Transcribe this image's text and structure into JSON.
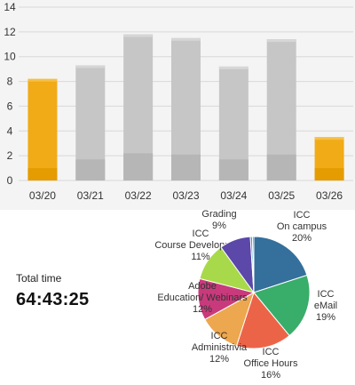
{
  "total_time": {
    "label": "Total time",
    "value": "64:43:25"
  },
  "colors": {
    "bar_highlight": "#f1ab17",
    "bar_highlight_dark": "#e59c00",
    "bar_gray": "#c6c6c6",
    "bar_gray_dark": "#b6b6b6",
    "panel_bg": "#f4f4f4",
    "gridline": "#d8d8d8"
  },
  "chart_data": [
    {
      "type": "bar",
      "categories": [
        "03/20",
        "03/21",
        "03/22",
        "03/23",
        "03/24",
        "03/25",
        "03/26"
      ],
      "values": [
        8.2,
        9.3,
        11.8,
        11.5,
        9.2,
        11.4,
        3.5
      ],
      "lower_segment": [
        null,
        1.7,
        2.2,
        2.1,
        1.7,
        2.1,
        null
      ],
      "highlighted": [
        true,
        false,
        false,
        false,
        false,
        false,
        true
      ],
      "ylim": [
        0,
        14
      ],
      "yticks": [
        0,
        2,
        4,
        6,
        8,
        10,
        12,
        14
      ],
      "grid": true,
      "title": "",
      "xlabel": "",
      "ylabel": ""
    },
    {
      "type": "pie",
      "slices": [
        {
          "label_lines": [
            "ICC",
            "On campus",
            "20%"
          ],
          "value": 20,
          "color": "#356f9c"
        },
        {
          "label_lines": [
            "ICC",
            "eMail",
            "19%"
          ],
          "value": 19,
          "color": "#39ad6a"
        },
        {
          "label_lines": [
            "ICC",
            "Office Hours",
            "16%"
          ],
          "value": 16,
          "color": "#ec6448"
        },
        {
          "label_lines": [
            "ICC",
            "Administrivia",
            "12%"
          ],
          "value": 12,
          "color": "#eda74e"
        },
        {
          "label_lines": [
            "Adobe",
            "Education/ Webinars",
            "12%"
          ],
          "value": 12,
          "color": "#c93a7c"
        },
        {
          "label_lines": [
            "ICC",
            "Course Development",
            "11%"
          ],
          "value": 11,
          "color": "#a8d94a"
        },
        {
          "label_lines": [
            "Grading",
            "9%"
          ],
          "value": 9,
          "color": "#5c48a8"
        },
        {
          "label_lines": [],
          "value": 0.6,
          "color": "#3a9fd0"
        },
        {
          "label_lines": [],
          "value": 0.4,
          "color": "#2a5a80"
        }
      ]
    }
  ]
}
